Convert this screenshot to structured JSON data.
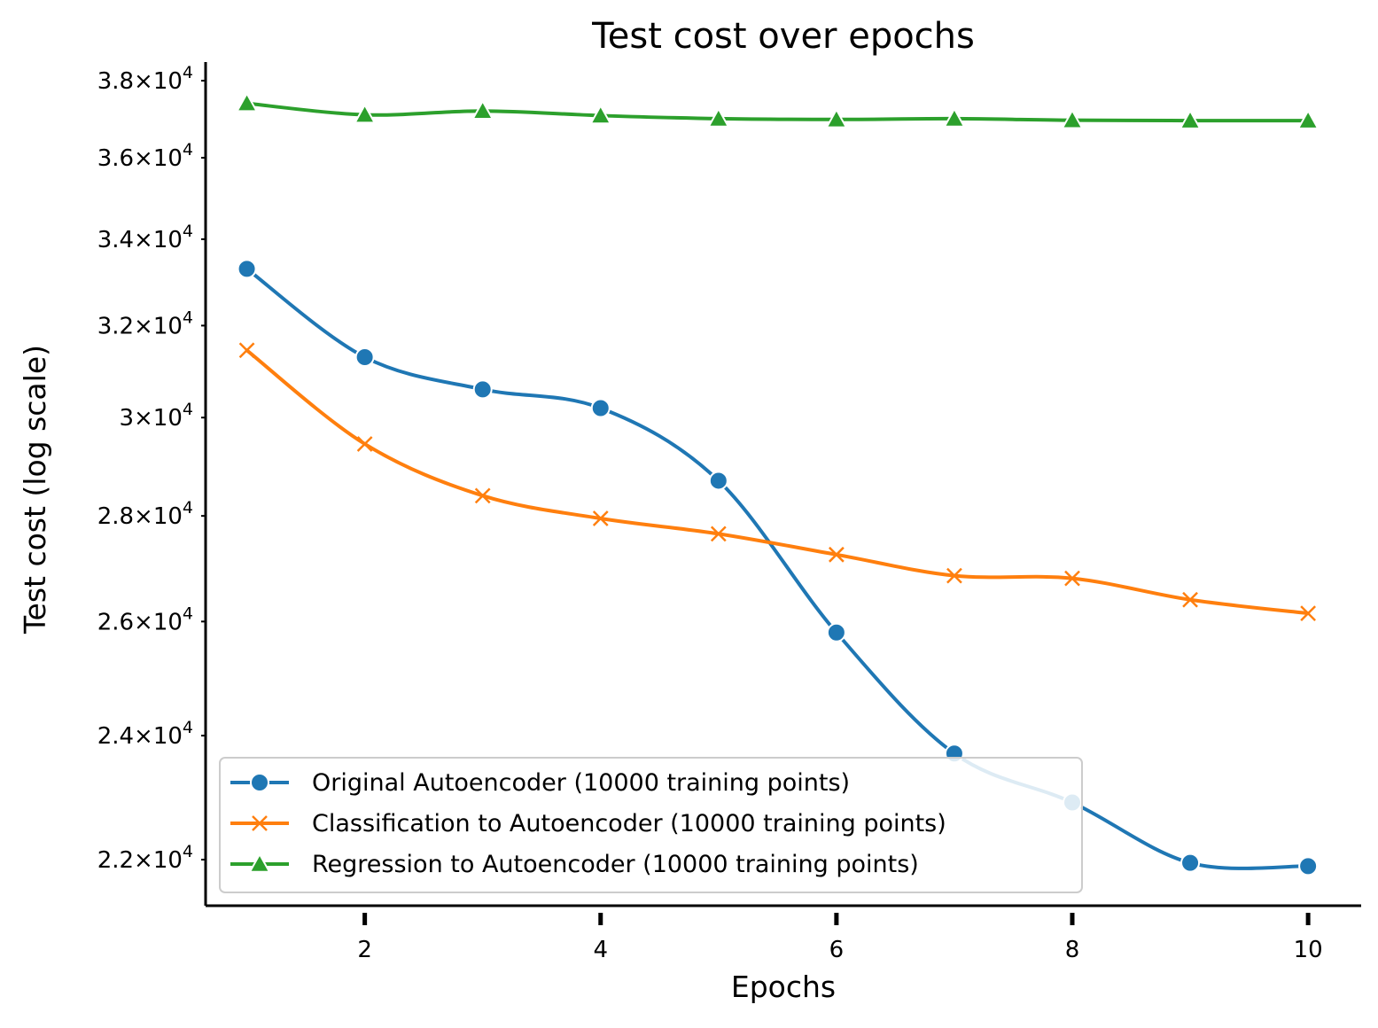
{
  "chart_data": {
    "type": "line",
    "title": "Test cost over epochs",
    "xlabel": "Epochs",
    "ylabel": "Test cost (log scale)",
    "yscale": "log",
    "xlim": [
      0.65,
      10.45
    ],
    "ylim": [
      21300,
      38500
    ],
    "x_ticks": [
      2,
      4,
      6,
      8,
      10
    ],
    "y_ticks": [
      {
        "value": 22000,
        "mantissa": "2.2",
        "base": "10",
        "exp": "4"
      },
      {
        "value": 24000,
        "mantissa": "2.4",
        "base": "10",
        "exp": "4"
      },
      {
        "value": 26000,
        "mantissa": "2.6",
        "base": "10",
        "exp": "4"
      },
      {
        "value": 28000,
        "mantissa": "2.8",
        "base": "10",
        "exp": "4"
      },
      {
        "value": 30000,
        "mantissa": "3",
        "base": "10",
        "exp": "4"
      },
      {
        "value": 32000,
        "mantissa": "3.2",
        "base": "10",
        "exp": "4"
      },
      {
        "value": 34000,
        "mantissa": "3.4",
        "base": "10",
        "exp": "4"
      },
      {
        "value": 36000,
        "mantissa": "3.6",
        "base": "10",
        "exp": "4"
      },
      {
        "value": 38000,
        "mantissa": "3.8",
        "base": "10",
        "exp": "4"
      }
    ],
    "x": [
      1,
      2,
      3,
      4,
      5,
      6,
      7,
      8,
      9,
      10
    ],
    "series": [
      {
        "name": "Original Autoencoder (10000 training points)",
        "color": "#1f77b4",
        "marker": "circle",
        "values": [
          33300,
          31300,
          30600,
          30200,
          28700,
          25800,
          23700,
          22900,
          21950,
          21900
        ]
      },
      {
        "name": "Classification to Autoencoder (10000 training points)",
        "color": "#ff7f0e",
        "marker": "x",
        "values": [
          31450,
          29450,
          28400,
          27950,
          27650,
          27250,
          26850,
          26800,
          26400,
          26150
        ]
      },
      {
        "name": "Regression to Autoencoder (10000 training points)",
        "color": "#2ca02c",
        "marker": "triangle",
        "values": [
          37400,
          37100,
          37200,
          37080,
          37000,
          36980,
          37000,
          36960,
          36950,
          36950
        ]
      }
    ],
    "grid": false,
    "legend_position": "lower-left"
  }
}
